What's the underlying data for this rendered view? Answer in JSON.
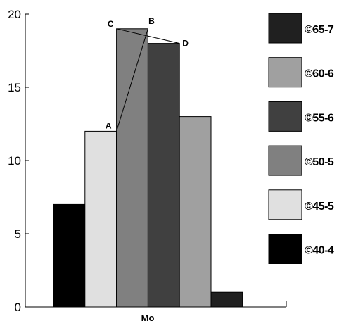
{
  "chart_data": {
    "type": "bar",
    "xlabel": "Mo",
    "ylabel": "",
    "ylim": [
      0,
      20
    ],
    "yticks": [
      "0",
      "5",
      "10",
      "15",
      "20"
    ],
    "grid": false,
    "legend_position": "right",
    "bars": [
      {
        "category": "©40-4",
        "value": 7,
        "color": "#000000"
      },
      {
        "category": "©45-5",
        "value": 12,
        "color": "#e0e0e0"
      },
      {
        "category": "©50-5",
        "value": 19,
        "color": "#808080"
      },
      {
        "category": "©55-6",
        "value": 18,
        "color": "#404040"
      },
      {
        "category": "©60-6",
        "value": 13,
        "color": "#a0a0a0"
      },
      {
        "category": "©65-7",
        "value": 1,
        "color": "#202020"
      }
    ],
    "legend": [
      {
        "label": "©65-7",
        "color": "#202020"
      },
      {
        "label": "©60-6",
        "color": "#a0a0a0"
      },
      {
        "label": "©55-6",
        "color": "#404040"
      },
      {
        "label": "©50-5",
        "color": "#808080"
      },
      {
        "label": "©45-5",
        "color": "#e0e0e0"
      },
      {
        "label": "©40-4",
        "color": "#000000"
      }
    ],
    "annotations": [
      {
        "label": "A",
        "bar": 1
      },
      {
        "label": "C",
        "bar": 2
      },
      {
        "label": "B",
        "bar": 3
      },
      {
        "label": "D",
        "bar": 3
      }
    ]
  }
}
